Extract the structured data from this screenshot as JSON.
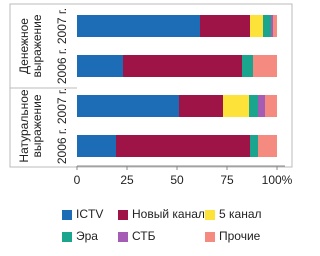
{
  "chart_data": {
    "type": "stacked-bar-horizontal",
    "categories": [
      "2007 г.",
      "2006 г.",
      "2007 г.",
      "2006 г."
    ],
    "groups": [
      [
        "Денежное",
        "выражение"
      ],
      [
        "Натуральное",
        "выражение"
      ]
    ],
    "series": [
      {
        "name": "ICTV",
        "color": "#1c6db5",
        "values": [
          61.5,
          23,
          51,
          19.5
        ]
      },
      {
        "name": "Новый канал",
        "color": "#9e1446",
        "values": [
          25,
          59.5,
          22,
          67
        ]
      },
      {
        "name": "5 канал",
        "color": "#fde23a",
        "values": [
          6.5,
          0,
          13,
          0
        ]
      },
      {
        "name": "Эра",
        "color": "#1ba58e",
        "values": [
          4,
          5.5,
          4.5,
          4
        ]
      },
      {
        "name": "СТБ",
        "color": "#a45cb4",
        "values": [
          1,
          0,
          3.5,
          0
        ]
      },
      {
        "name": "Прочие",
        "color": "#f48a80",
        "values": [
          2,
          12,
          6,
          9.5
        ]
      }
    ],
    "xlim": [
      0,
      100
    ],
    "xticks": [
      0,
      25,
      50,
      75,
      {
        "value": 100,
        "label": "100%"
      }
    ],
    "grid": false
  }
}
